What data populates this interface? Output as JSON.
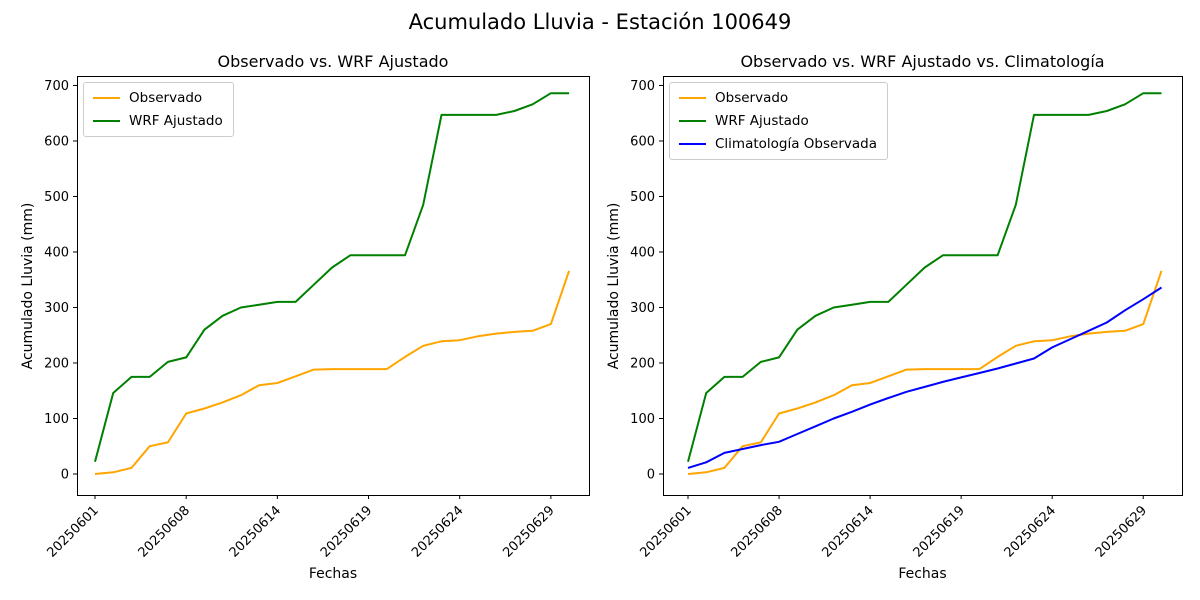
{
  "figure": {
    "suptitle": "Acumulado Lluvia - Estación 100649"
  },
  "chart_data": [
    {
      "type": "line",
      "title": "Observado vs. WRF Ajustado",
      "xlabel": "Fechas",
      "ylabel": "Acumulado Lluvia (mm)",
      "x_tick_labels": [
        "20250601",
        "20250608",
        "20250614",
        "20250619",
        "20250624",
        "20250629"
      ],
      "x_tick_indices": [
        0,
        5,
        10,
        15,
        20,
        25
      ],
      "n_points": 27,
      "yticks": [
        0,
        100,
        200,
        300,
        400,
        500,
        600,
        700
      ],
      "ylim": [
        -35,
        720
      ],
      "grid": false,
      "legend_position": "upper left",
      "series": [
        {
          "name": "Observado",
          "color": "#FFA500",
          "values": [
            0,
            3,
            11,
            50,
            57,
            109,
            118,
            129,
            142,
            160,
            164,
            176,
            188,
            189,
            189,
            189,
            189,
            211,
            231,
            239,
            241,
            248,
            253,
            256,
            258,
            270,
            366
          ]
        },
        {
          "name": "WRF Ajustado",
          "color": "#008000",
          "values": [
            22,
            146,
            175,
            175,
            202,
            210,
            260,
            285,
            300,
            305,
            310,
            310,
            341,
            372,
            394,
            394,
            394,
            394,
            485,
            647,
            647,
            647,
            647,
            654,
            666,
            686,
            686
          ]
        }
      ]
    },
    {
      "type": "line",
      "title": "Observado vs. WRF Ajustado vs. Climatología",
      "xlabel": "Fechas",
      "ylabel": "Acumulado Lluvia (mm)",
      "x_tick_labels": [
        "20250601",
        "20250608",
        "20250614",
        "20250619",
        "20250624",
        "20250629"
      ],
      "x_tick_indices": [
        0,
        5,
        10,
        15,
        20,
        25
      ],
      "n_points": 27,
      "yticks": [
        0,
        100,
        200,
        300,
        400,
        500,
        600,
        700
      ],
      "ylim": [
        -35,
        720
      ],
      "grid": false,
      "legend_position": "upper left",
      "series": [
        {
          "name": "Observado",
          "color": "#FFA500",
          "values": [
            0,
            3,
            11,
            50,
            57,
            109,
            118,
            129,
            142,
            160,
            164,
            176,
            188,
            189,
            189,
            189,
            189,
            211,
            231,
            239,
            241,
            248,
            253,
            256,
            258,
            270,
            366
          ]
        },
        {
          "name": "WRF Ajustado",
          "color": "#008000",
          "values": [
            22,
            146,
            175,
            175,
            202,
            210,
            260,
            285,
            300,
            305,
            310,
            310,
            341,
            372,
            394,
            394,
            394,
            394,
            485,
            647,
            647,
            647,
            647,
            654,
            666,
            686,
            686
          ]
        },
        {
          "name": "Climatología Observada",
          "color": "#0000FF",
          "values": [
            11,
            21,
            38,
            45,
            52,
            58,
            72,
            86,
            100,
            112,
            125,
            137,
            148,
            157,
            166,
            174,
            182,
            190,
            199,
            208,
            228,
            243,
            258,
            273,
            295,
            315,
            336
          ]
        }
      ]
    }
  ]
}
